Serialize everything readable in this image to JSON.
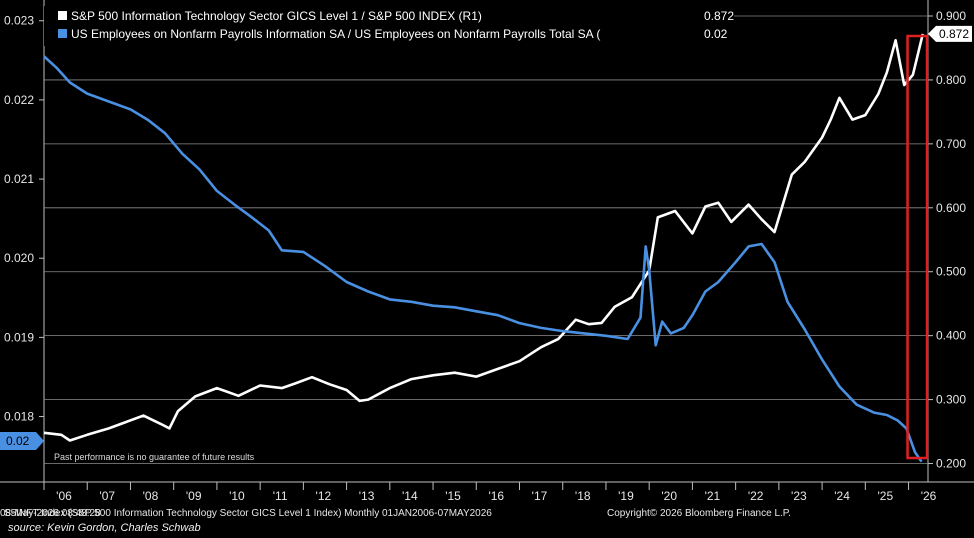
{
  "colors": {
    "background": "#000000",
    "it_index": "#ffffff",
    "employment": "#4a90e2",
    "highlight_box": "#e02020",
    "grid": "#8c8c8c"
  },
  "footer": {
    "ticker": "S5INFT Index (S&P 500 Information Technology Sector GICS Level 1 Index) Monthly 01JAN2006-07MAY2026",
    "copyright": "Copyright© 2026 Bloomberg Finance L.P.",
    "timestamp": "08-May-2026 08:48:28",
    "source": "source: Kevin Gordon, Charles Schwab"
  },
  "chart_data": {
    "type": "line",
    "note": "Past performance is no guarantee of future results",
    "x_tick_labels": [
      "'06",
      "'07",
      "'08",
      "'09",
      "'10",
      "'11",
      "'12",
      "'13",
      "'14",
      "'15",
      "'16",
      "'17",
      "'18",
      "'19",
      "'20",
      "'21",
      "'22",
      "'23",
      "'24",
      "'25",
      "'26"
    ],
    "x_range": [
      2006.0,
      2026.45
    ],
    "left_axis": {
      "ticks": [
        "0.023",
        "0.022",
        "0.021",
        "0.020",
        "0.019",
        "0.018"
      ],
      "ylim": [
        0.01735,
        0.02306
      ]
    },
    "right_axis": {
      "ticks": [
        "0.900",
        "0.800",
        "0.700",
        "0.600",
        "0.500",
        "0.400",
        "0.300",
        "0.200"
      ],
      "ylim": [
        0.193,
        0.9
      ]
    },
    "series": [
      {
        "name": "S&P 500 Information Technology Sector GICS Level 1 / S&P 500 INDEX (R1)",
        "axis": "right",
        "last_value_label": "0.872",
        "x": [
          2006.0,
          2006.4,
          2006.6,
          2007.0,
          2007.5,
          2007.9,
          2008.3,
          2008.7,
          2008.9,
          2009.1,
          2009.5,
          2010.0,
          2010.5,
          2011.0,
          2011.5,
          2011.8,
          2012.2,
          2012.6,
          2013.0,
          2013.3,
          2013.5,
          2014.0,
          2014.5,
          2015.0,
          2015.5,
          2016.0,
          2016.5,
          2017.0,
          2017.5,
          2017.9,
          2018.3,
          2018.6,
          2018.9,
          2019.2,
          2019.6,
          2020.0,
          2020.2,
          2020.6,
          2021.0,
          2021.3,
          2021.6,
          2021.9,
          2022.3,
          2022.6,
          2022.9,
          2023.3,
          2023.6,
          2024.0,
          2024.2,
          2024.4,
          2024.7,
          2025.0,
          2025.3,
          2025.5,
          2025.7,
          2025.9,
          2026.1,
          2026.33
        ],
        "values": [
          0.248,
          0.245,
          0.236,
          0.245,
          0.255,
          0.265,
          0.275,
          0.262,
          0.255,
          0.282,
          0.305,
          0.318,
          0.306,
          0.322,
          0.318,
          0.325,
          0.335,
          0.324,
          0.315,
          0.298,
          0.3,
          0.318,
          0.332,
          0.338,
          0.342,
          0.336,
          0.348,
          0.36,
          0.382,
          0.395,
          0.425,
          0.418,
          0.42,
          0.445,
          0.46,
          0.502,
          0.585,
          0.595,
          0.56,
          0.602,
          0.608,
          0.578,
          0.605,
          0.582,
          0.562,
          0.652,
          0.672,
          0.71,
          0.738,
          0.772,
          0.738,
          0.745,
          0.778,
          0.812,
          0.862,
          0.792,
          0.808,
          0.872
        ]
      },
      {
        "name": "US Employees on Nonfarm Payrolls Information SA / US Employees on Nonfarm Payrolls Total SA (",
        "axis": "left",
        "last_value_label": "0.02",
        "x": [
          2006.0,
          2006.3,
          2006.6,
          2007.0,
          2007.5,
          2008.0,
          2008.4,
          2008.8,
          2009.2,
          2009.6,
          2010.0,
          2010.4,
          2010.8,
          2011.2,
          2011.5,
          2012.0,
          2012.5,
          2013.0,
          2013.5,
          2014.0,
          2014.5,
          2015.0,
          2015.5,
          2016.0,
          2016.5,
          2017.0,
          2017.5,
          2018.0,
          2018.5,
          2019.0,
          2019.5,
          2019.8,
          2019.92,
          2020.0,
          2020.15,
          2020.3,
          2020.5,
          2020.8,
          2021.0,
          2021.3,
          2021.6,
          2022.0,
          2022.3,
          2022.6,
          2022.9,
          2023.2,
          2023.6,
          2024.0,
          2024.4,
          2024.8,
          2025.2,
          2025.5,
          2025.75,
          2025.95,
          2026.15,
          2026.3
        ],
        "values": [
          0.02255,
          0.0224,
          0.02222,
          0.02208,
          0.02198,
          0.02188,
          0.02175,
          0.02158,
          0.02132,
          0.02112,
          0.02085,
          0.02068,
          0.02052,
          0.02035,
          0.0201,
          0.02008,
          0.0199,
          0.0197,
          0.01958,
          0.01948,
          0.01945,
          0.0194,
          0.01938,
          0.01933,
          0.01928,
          0.01918,
          0.01912,
          0.01908,
          0.01905,
          0.01902,
          0.01898,
          0.01925,
          0.02015,
          0.01985,
          0.0189,
          0.0192,
          0.01905,
          0.01912,
          0.01928,
          0.01958,
          0.0197,
          0.01995,
          0.02015,
          0.02018,
          0.01995,
          0.01945,
          0.0191,
          0.01872,
          0.01838,
          0.01815,
          0.01805,
          0.01802,
          0.01795,
          0.01785,
          0.01755,
          0.01743
        ]
      }
    ]
  }
}
